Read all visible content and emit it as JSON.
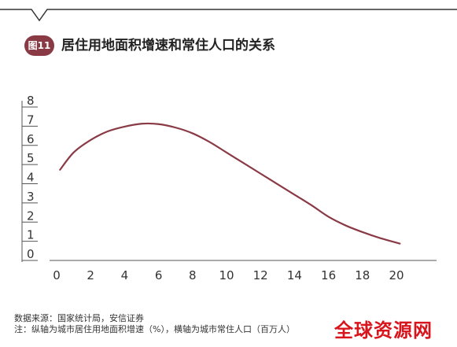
{
  "header": {
    "badge_label": "图11",
    "title": "居住用地面积增速和常住人口的关系"
  },
  "chart_data": {
    "type": "line",
    "title": "居住用地面积增速和常住人口的关系",
    "xlabel": "",
    "ylabel": "",
    "xlim": [
      0,
      22
    ],
    "ylim": [
      0,
      8
    ],
    "x_ticks": [
      0,
      2,
      4,
      6,
      8,
      10,
      12,
      14,
      16,
      18,
      20
    ],
    "y_ticks": [
      0,
      1,
      2,
      3,
      4,
      5,
      6,
      7,
      8
    ],
    "grid": false,
    "series": [
      {
        "color": "#8a3a45",
        "x": [
          0.2,
          1,
          2,
          3,
          4,
          5,
          6,
          7,
          8,
          9,
          10,
          11,
          12,
          13,
          14,
          15,
          16,
          17,
          18,
          19,
          20.2
        ],
        "y": [
          4.4,
          5.3,
          5.95,
          6.4,
          6.65,
          6.8,
          6.78,
          6.6,
          6.3,
          5.85,
          5.3,
          4.75,
          4.2,
          3.65,
          3.1,
          2.55,
          1.95,
          1.5,
          1.15,
          0.85,
          0.55
        ]
      }
    ]
  },
  "footer": {
    "source": "数据来源：国家统计局，安信证券",
    "note": "注：纵轴为城市居住用地面积增速（%），横轴为城市常住人口（百万人）"
  },
  "watermark": "全球资源网",
  "colors": {
    "accent": "#8a3a45",
    "axis": "#555555",
    "watermark": "#d8141c"
  }
}
